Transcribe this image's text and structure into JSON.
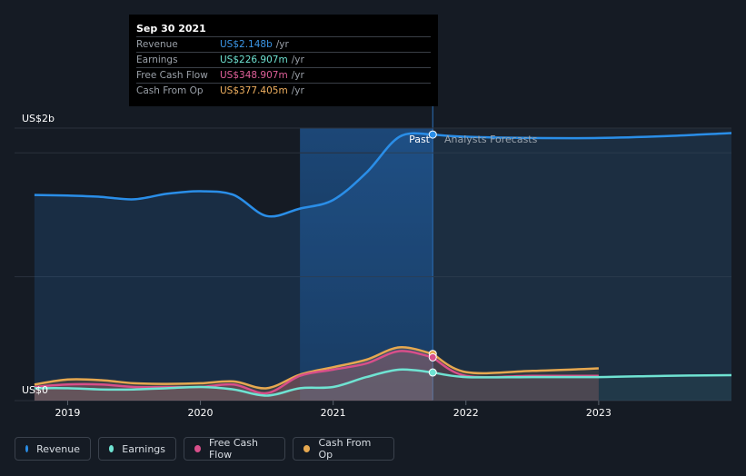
{
  "tooltip": {
    "date": "Sep 30 2021",
    "rows": [
      {
        "label": "Revenue",
        "value": "US$2.148b",
        "unit": "/yr",
        "color": "#3b96e6"
      },
      {
        "label": "Earnings",
        "value": "US$226.907m",
        "unit": "/yr",
        "color": "#6fe3d2"
      },
      {
        "label": "Free Cash Flow",
        "value": "US$348.907m",
        "unit": "/yr",
        "color": "#e0609a"
      },
      {
        "label": "Cash From Op",
        "value": "US$377.405m",
        "unit": "/yr",
        "color": "#f0b060"
      }
    ]
  },
  "legend": [
    {
      "label": "Revenue",
      "color": "#2a8ee8"
    },
    {
      "label": "Earnings",
      "color": "#6fe3d2"
    },
    {
      "label": "Free Cash Flow",
      "color": "#d84f8a"
    },
    {
      "label": "Cash From Op",
      "color": "#e6a850"
    }
  ],
  "chart_data": {
    "type": "line",
    "y_top_label": "US$2b",
    "y_bottom_label": "US$0",
    "ylim": [
      0,
      2.2
    ],
    "xlim": [
      2018.6,
      2024.0
    ],
    "x_ticks": [
      {
        "value": 2019,
        "label": "2019"
      },
      {
        "value": 2020,
        "label": "2020"
      },
      {
        "value": 2021,
        "label": "2021"
      },
      {
        "value": 2022,
        "label": "2022"
      },
      {
        "value": 2023,
        "label": "2023"
      }
    ],
    "divider_x": 2021.75,
    "highlight_start_x": 2020.75,
    "past_label": "Past",
    "forecast_label": "Analysts Forecasts",
    "series": [
      {
        "name": "Revenue",
        "color": "#2a8ee8",
        "past": [
          [
            2018.75,
            1.66
          ],
          [
            2019.0,
            1.655
          ],
          [
            2019.25,
            1.645
          ],
          [
            2019.5,
            1.625
          ],
          [
            2019.75,
            1.67
          ],
          [
            2020.0,
            1.69
          ],
          [
            2020.25,
            1.66
          ],
          [
            2020.5,
            1.49
          ],
          [
            2020.75,
            1.55
          ],
          [
            2021.0,
            1.62
          ],
          [
            2021.25,
            1.84
          ],
          [
            2021.5,
            2.13
          ],
          [
            2021.75,
            2.148
          ]
        ],
        "forecast": [
          [
            2021.75,
            2.148
          ],
          [
            2022.0,
            2.13
          ],
          [
            2022.5,
            2.12
          ],
          [
            2023.0,
            2.12
          ],
          [
            2023.5,
            2.135
          ],
          [
            2024.0,
            2.16
          ]
        ]
      },
      {
        "name": "Earnings",
        "color": "#6fe3d2",
        "past": [
          [
            2018.75,
            0.1
          ],
          [
            2019.0,
            0.1
          ],
          [
            2019.25,
            0.09
          ],
          [
            2019.5,
            0.09
          ],
          [
            2019.75,
            0.1
          ],
          [
            2020.0,
            0.11
          ],
          [
            2020.25,
            0.09
          ],
          [
            2020.5,
            0.04
          ],
          [
            2020.75,
            0.1
          ],
          [
            2021.0,
            0.11
          ],
          [
            2021.25,
            0.19
          ],
          [
            2021.5,
            0.25
          ],
          [
            2021.75,
            0.227
          ]
        ],
        "forecast": [
          [
            2021.75,
            0.227
          ],
          [
            2022.0,
            0.19
          ],
          [
            2022.5,
            0.19
          ],
          [
            2023.0,
            0.19
          ],
          [
            2023.5,
            0.2
          ],
          [
            2024.0,
            0.205
          ]
        ]
      },
      {
        "name": "Free Cash Flow",
        "color": "#d84f8a",
        "past": [
          [
            2018.75,
            0.11
          ],
          [
            2019.0,
            0.13
          ],
          [
            2019.25,
            0.13
          ],
          [
            2019.5,
            0.11
          ],
          [
            2019.75,
            0.11
          ],
          [
            2020.0,
            0.11
          ],
          [
            2020.25,
            0.13
          ],
          [
            2020.5,
            0.06
          ],
          [
            2020.75,
            0.2
          ],
          [
            2021.0,
            0.25
          ],
          [
            2021.25,
            0.3
          ],
          [
            2021.5,
            0.4
          ],
          [
            2021.75,
            0.349
          ]
        ],
        "forecast": [
          [
            2021.75,
            0.349
          ],
          [
            2022.0,
            0.2
          ],
          [
            2022.5,
            0.2
          ],
          [
            2023.0,
            0.2
          ]
        ]
      },
      {
        "name": "Cash From Op",
        "color": "#e6a850",
        "past": [
          [
            2018.75,
            0.13
          ],
          [
            2019.0,
            0.17
          ],
          [
            2019.25,
            0.165
          ],
          [
            2019.5,
            0.14
          ],
          [
            2019.75,
            0.135
          ],
          [
            2020.0,
            0.14
          ],
          [
            2020.25,
            0.155
          ],
          [
            2020.5,
            0.1
          ],
          [
            2020.75,
            0.21
          ],
          [
            2021.0,
            0.27
          ],
          [
            2021.25,
            0.33
          ],
          [
            2021.5,
            0.43
          ],
          [
            2021.75,
            0.377
          ]
        ],
        "forecast": [
          [
            2021.75,
            0.377
          ],
          [
            2022.0,
            0.23
          ],
          [
            2022.5,
            0.24
          ],
          [
            2023.0,
            0.26
          ]
        ]
      }
    ]
  }
}
